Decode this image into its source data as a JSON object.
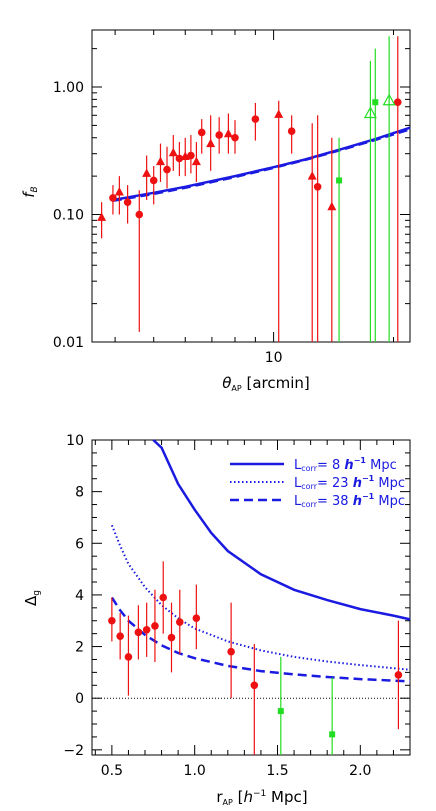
{
  "chart_data": [
    {
      "type": "scatter",
      "xlabel": "θ_AP [arcmin]",
      "xlabel_main": "θ",
      "xlabel_sub": "AP",
      "xlabel_rest": " [arcmin]",
      "ylabel": "f_B",
      "ylabel_main": "f",
      "ylabel_sub": "B",
      "xscale": "log",
      "yscale": "log",
      "xlim": [
        3.5,
        22
      ],
      "ylim": [
        0.01,
        2.8
      ],
      "x_ticks": [
        10
      ],
      "y_ticks": [
        0.01,
        0.1,
        1.0
      ],
      "x_tick_labels": [
        "10"
      ],
      "y_tick_labels": [
        "0.01",
        "0.10",
        "1.00"
      ],
      "colors": {
        "red": "#ee1111",
        "green": "#22dd22",
        "blue": "#1a1ae0"
      },
      "series": [
        {
          "marker": "circle",
          "color": "red",
          "points": [
            {
              "x": 3.95,
              "y": 0.135,
              "lo": 0.1,
              "hi": 0.17
            },
            {
              "x": 4.3,
              "y": 0.125,
              "lo": 0.085,
              "hi": 0.17
            },
            {
              "x": 4.6,
              "y": 0.1,
              "lo": 0.012,
              "hi": 0.155
            },
            {
              "x": 5.0,
              "y": 0.185,
              "lo": 0.12,
              "hi": 0.24
            },
            {
              "x": 5.4,
              "y": 0.225,
              "lo": 0.16,
              "hi": 0.34
            },
            {
              "x": 5.8,
              "y": 0.275,
              "lo": 0.2,
              "hi": 0.37
            },
            {
              "x": 6.2,
              "y": 0.29,
              "lo": 0.21,
              "hi": 0.42
            },
            {
              "x": 6.6,
              "y": 0.44,
              "lo": 0.3,
              "hi": 0.56
            },
            {
              "x": 7.3,
              "y": 0.42,
              "lo": 0.3,
              "hi": 0.58
            },
            {
              "x": 8.0,
              "y": 0.4,
              "lo": 0.3,
              "hi": 0.55
            },
            {
              "x": 9.0,
              "y": 0.56,
              "lo": 0.38,
              "hi": 0.75
            },
            {
              "x": 11.1,
              "y": 0.45,
              "lo": 0.3,
              "hi": 0.6
            },
            {
              "x": 12.9,
              "y": 0.165,
              "lo": 0.01,
              "hi": 0.6
            },
            {
              "x": 20.5,
              "y": 0.76,
              "lo": 0.01,
              "hi": 2.5
            }
          ]
        },
        {
          "marker": "triangle",
          "color": "red",
          "points": [
            {
              "x": 3.7,
              "y": 0.095,
              "lo": 0.065,
              "hi": 0.125
            },
            {
              "x": 4.1,
              "y": 0.15,
              "lo": 0.1,
              "hi": 0.2
            },
            {
              "x": 4.8,
              "y": 0.21,
              "lo": 0.13,
              "hi": 0.29
            },
            {
              "x": 5.2,
              "y": 0.26,
              "lo": 0.18,
              "hi": 0.36
            },
            {
              "x": 5.6,
              "y": 0.305,
              "lo": 0.22,
              "hi": 0.42
            },
            {
              "x": 6.0,
              "y": 0.285,
              "lo": 0.2,
              "hi": 0.4
            },
            {
              "x": 6.4,
              "y": 0.26,
              "lo": 0.18,
              "hi": 0.37
            },
            {
              "x": 6.95,
              "y": 0.36,
              "lo": 0.22,
              "hi": 0.6
            },
            {
              "x": 7.7,
              "y": 0.43,
              "lo": 0.3,
              "hi": 0.62
            },
            {
              "x": 10.3,
              "y": 0.61,
              "lo": 0.01,
              "hi": 0.78
            },
            {
              "x": 12.5,
              "y": 0.2,
              "lo": 0.01,
              "hi": 0.52
            },
            {
              "x": 14.0,
              "y": 0.115,
              "lo": 0.01,
              "hi": 0.4
            }
          ]
        },
        {
          "marker": "square",
          "color": "green",
          "points": [
            {
              "x": 14.6,
              "y": 0.185,
              "lo": 0.01,
              "hi": 0.4
            },
            {
              "x": 18.0,
              "y": 0.76,
              "lo": 0.01,
              "hi": 2.0
            }
          ]
        },
        {
          "marker": "open-triangle",
          "color": "green",
          "points": [
            {
              "x": 17.5,
              "y": 0.62,
              "lo": 0.01,
              "hi": 1.6
            },
            {
              "x": 19.5,
              "y": 0.78,
              "lo": 0.01,
              "hi": 2.5
            }
          ]
        }
      ],
      "curves": [
        {
          "style": "solid",
          "color": "blue",
          "x": [
            3.95,
            5,
            6,
            8,
            10,
            12,
            15,
            18,
            22
          ],
          "y": [
            0.13,
            0.148,
            0.165,
            0.2,
            0.235,
            0.27,
            0.33,
            0.39,
            0.48
          ]
        },
        {
          "style": "dashed",
          "color": "blue",
          "x": [
            3.95,
            5,
            6,
            8,
            10,
            12,
            15,
            18,
            22
          ],
          "y": [
            0.128,
            0.145,
            0.162,
            0.197,
            0.232,
            0.268,
            0.325,
            0.385,
            0.465
          ]
        }
      ]
    },
    {
      "type": "scatter",
      "xlabel": "r_AP [h^-1 Mpc]",
      "xlabel_main": "r",
      "xlabel_sub": "AP",
      "xlabel_rest_a": " [",
      "xlabel_h": "h",
      "xlabel_sup": "−1",
      "xlabel_rest_b": " Mpc]",
      "ylabel": "Δ_g",
      "ylabel_main": "Δ",
      "ylabel_sub": "g",
      "xlim": [
        0.38,
        2.3
      ],
      "ylim": [
        -2.2,
        10
      ],
      "x_ticks": [
        0.5,
        1.0,
        1.5,
        2.0
      ],
      "y_ticks": [
        -2,
        0,
        2,
        4,
        6,
        8,
        10
      ],
      "x_tick_labels": [
        "0.5",
        "1.0",
        "1.5",
        "2.0"
      ],
      "y_tick_labels": [
        "−2",
        "0",
        "2",
        "4",
        "6",
        "8",
        "10"
      ],
      "zero_line": true,
      "legend_position": "top-right",
      "legend": [
        {
          "style": "solid",
          "prefix": "L",
          "sub": "corr",
          "value": "= 8 ",
          "h": "h",
          "sup": "−1",
          "unit": " Mpc"
        },
        {
          "style": "dotted",
          "prefix": "L",
          "sub": "corr",
          "value": "= 23 ",
          "h": "h",
          "sup": "−1",
          "unit": " Mpc"
        },
        {
          "style": "dashed",
          "prefix": "L",
          "sub": "corr",
          "value": "= 38 ",
          "h": "h",
          "sup": "−1",
          "unit": " Mpc"
        }
      ],
      "series": [
        {
          "marker": "circle",
          "color": "red",
          "points": [
            {
              "x": 0.5,
              "y": 3.0,
              "lo": 2.2,
              "hi": 3.9
            },
            {
              "x": 0.55,
              "y": 2.4,
              "lo": 1.5,
              "hi": 3.3
            },
            {
              "x": 0.6,
              "y": 1.6,
              "lo": 0.1,
              "hi": 3.2
            },
            {
              "x": 0.66,
              "y": 2.55,
              "lo": 1.5,
              "hi": 3.6
            },
            {
              "x": 0.71,
              "y": 2.65,
              "lo": 1.6,
              "hi": 3.7
            },
            {
              "x": 0.76,
              "y": 2.8,
              "lo": 1.4,
              "hi": 4.2
            },
            {
              "x": 0.81,
              "y": 3.9,
              "lo": 2.5,
              "hi": 5.3
            },
            {
              "x": 0.86,
              "y": 2.35,
              "lo": 1.0,
              "hi": 3.7
            },
            {
              "x": 0.91,
              "y": 2.95,
              "lo": 1.7,
              "hi": 4.2
            },
            {
              "x": 1.01,
              "y": 3.1,
              "lo": 1.9,
              "hi": 4.4
            },
            {
              "x": 1.22,
              "y": 1.8,
              "lo": 0.0,
              "hi": 3.7
            },
            {
              "x": 1.36,
              "y": 0.5,
              "lo": -2.3,
              "hi": 2.1
            },
            {
              "x": 2.23,
              "y": 0.9,
              "lo": -1.2,
              "hi": 3.0
            }
          ]
        },
        {
          "marker": "square",
          "color": "green",
          "points": [
            {
              "x": 1.52,
              "y": -0.5,
              "lo": -2.3,
              "hi": 1.6
            },
            {
              "x": 1.83,
              "y": -1.4,
              "lo": -2.3,
              "hi": 0.8
            }
          ]
        }
      ],
      "curves": [
        {
          "style": "solid",
          "color": "blue",
          "x": [
            0.75,
            0.8,
            0.9,
            1.0,
            1.1,
            1.2,
            1.4,
            1.6,
            1.8,
            2.0,
            2.2,
            2.3
          ],
          "y": [
            10.5,
            9.7,
            8.3,
            7.3,
            6.4,
            5.7,
            4.8,
            4.2,
            3.8,
            3.45,
            3.2,
            3.05
          ]
        },
        {
          "style": "dotted",
          "color": "blue",
          "x": [
            0.5,
            0.55,
            0.6,
            0.7,
            0.8,
            0.9,
            1.0,
            1.2,
            1.4,
            1.6,
            1.8,
            2.0,
            2.2,
            2.3
          ],
          "y": [
            6.7,
            5.9,
            5.2,
            4.3,
            3.6,
            3.1,
            2.7,
            2.2,
            1.85,
            1.6,
            1.42,
            1.28,
            1.16,
            1.1
          ]
        },
        {
          "style": "dashed",
          "color": "blue",
          "x": [
            0.5,
            0.55,
            0.6,
            0.7,
            0.8,
            0.9,
            1.0,
            1.2,
            1.4,
            1.6,
            1.8,
            2.0,
            2.2,
            2.3
          ],
          "y": [
            3.9,
            3.4,
            3.0,
            2.45,
            2.05,
            1.75,
            1.55,
            1.25,
            1.05,
            0.92,
            0.82,
            0.74,
            0.68,
            0.65
          ]
        }
      ]
    }
  ]
}
